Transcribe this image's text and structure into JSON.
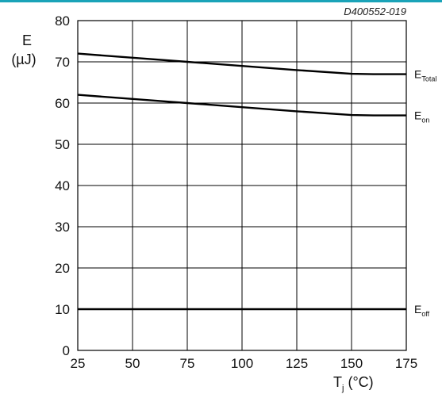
{
  "figure": {
    "doc_code": "D400552-019",
    "ylabel_main": "E",
    "ylabel_unit": "(µJ)",
    "xlabel_main": "T",
    "xlabel_sub": "j",
    "xlabel_unit": " (°C)",
    "accent_color": "#1aa3b8"
  },
  "chart_data": {
    "type": "line",
    "x": [
      25,
      50,
      75,
      100,
      125,
      150,
      175
    ],
    "xlim": [
      25,
      175
    ],
    "ylim": [
      0,
      80
    ],
    "xticks": [
      25,
      50,
      75,
      100,
      125,
      150,
      175
    ],
    "yticks": [
      0,
      10,
      20,
      30,
      40,
      50,
      60,
      70,
      80
    ],
    "grid": true,
    "legend": "right-edge labels",
    "series": [
      {
        "name": "E",
        "sub": "Total",
        "x": [
          25,
          50,
          75,
          100,
          125,
          150,
          160,
          175
        ],
        "values": [
          72,
          71,
          70,
          69,
          68,
          67.1,
          67,
          67
        ]
      },
      {
        "name": "E",
        "sub": "on",
        "x": [
          25,
          50,
          75,
          100,
          125,
          150,
          160,
          175
        ],
        "values": [
          62,
          61,
          60,
          59,
          58,
          57.1,
          57,
          57
        ]
      },
      {
        "name": "E",
        "sub": "off",
        "x": [
          25,
          175
        ],
        "values": [
          10,
          10
        ]
      }
    ]
  }
}
